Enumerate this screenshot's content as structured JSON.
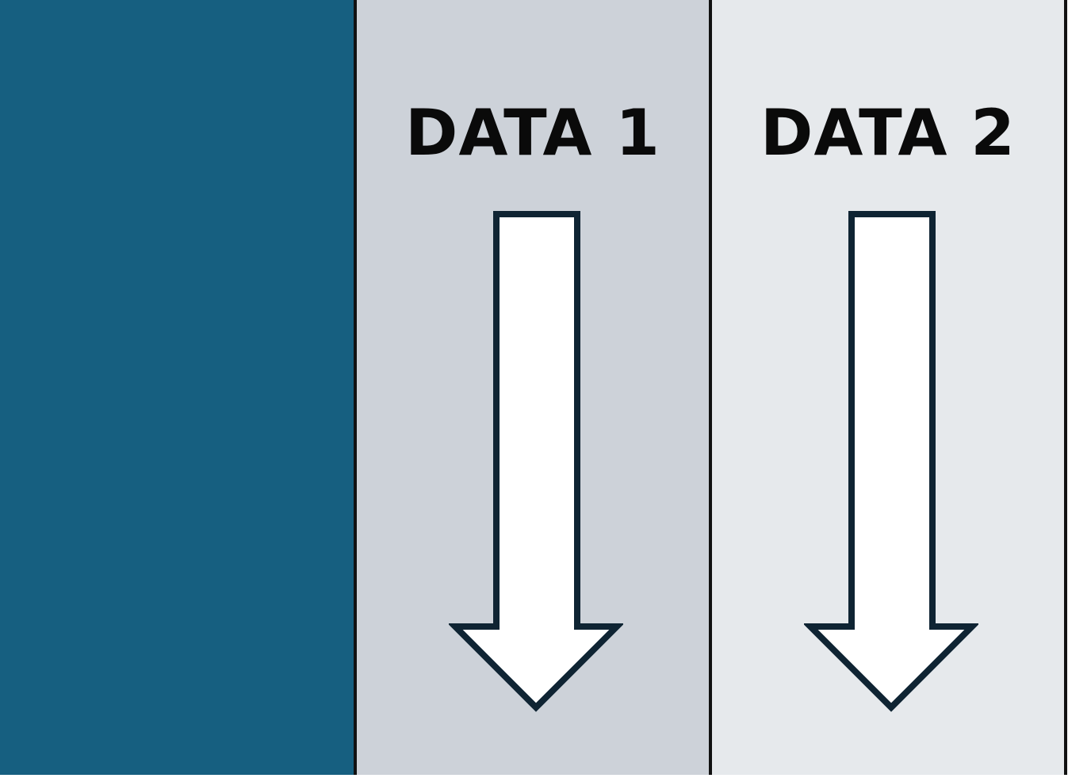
{
  "colors": {
    "panel_left": "#165f80",
    "panel_data1": "#cdd2d9",
    "panel_data2": "#e6e9ec",
    "divider": "#111111",
    "arrow_fill": "#ffffff",
    "arrow_stroke": "#0f2433",
    "label_text": "#0a0a0a"
  },
  "panels": [
    {
      "label": "DATA 1",
      "icon": "down-arrow-icon"
    },
    {
      "label": "DATA 2",
      "icon": "down-arrow-icon"
    }
  ]
}
